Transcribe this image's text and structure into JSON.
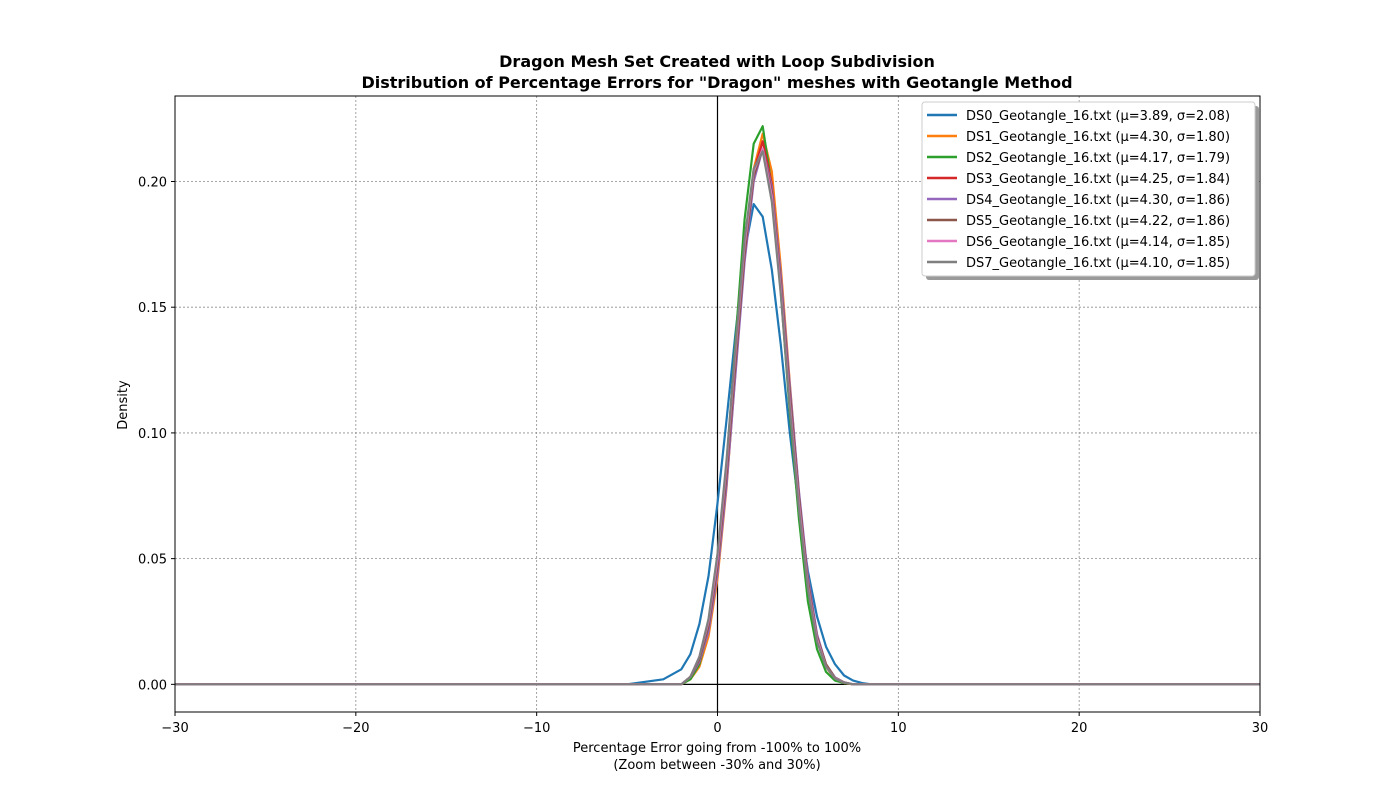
{
  "chart_data": {
    "type": "line",
    "title": "Dragon Mesh Set Created with Loop Subdivision",
    "subtitle": "Distribution of Percentage Errors for \"Dragon\" meshes with Geotangle Method",
    "xlabel": "Percentage Error going from -100% to 100%",
    "xlabel2": "(Zoom between -30% and 30%)",
    "ylabel": "Density",
    "xlim": [
      -30,
      30
    ],
    "ylim": [
      -0.011,
      0.234
    ],
    "xticks": [
      -30,
      -20,
      -10,
      0,
      10,
      20,
      30
    ],
    "xtick_labels": [
      "−30",
      "−20",
      "−10",
      "0",
      "10",
      "20",
      "30"
    ],
    "yticks": [
      0.0,
      0.05,
      0.1,
      0.15,
      0.2
    ],
    "ytick_labels": [
      "0.00",
      "0.05",
      "0.10",
      "0.15",
      "0.20"
    ],
    "grid": true,
    "reference_lines": {
      "x": 0,
      "y": 0
    },
    "legend_position": "upper right",
    "x": [
      -30,
      -5,
      -3,
      -2,
      -1.5,
      -1,
      -0.5,
      0,
      0.5,
      1,
      1.5,
      2,
      2.5,
      3,
      3.5,
      4,
      4.5,
      5,
      5.5,
      6,
      6.5,
      7,
      7.5,
      8,
      8.5,
      9,
      9.5,
      10,
      10.5,
      11,
      12,
      15,
      30
    ],
    "series": [
      {
        "name": "DS0_Geotangle_16.txt (μ=3.89, σ=2.08)",
        "color": "#1f77b4",
        "values": [
          0,
          0,
          0.002,
          0.006,
          0.012,
          0.024,
          0.043,
          0.072,
          0.105,
          0.14,
          0.172,
          0.191,
          0.186,
          0.165,
          0.135,
          0.1,
          0.07,
          0.045,
          0.027,
          0.015,
          0.008,
          0.0035,
          0.0015,
          0.0005,
          0,
          0,
          0,
          0,
          0,
          0,
          0,
          0,
          0
        ]
      },
      {
        "name": "DS1_Geotangle_16.txt (μ=4.30, σ=1.80)",
        "color": "#ff7f0e",
        "values": [
          0,
          0,
          0,
          0,
          0.002,
          0.007,
          0.019,
          0.042,
          0.078,
          0.125,
          0.171,
          0.205,
          0.219,
          0.204,
          0.166,
          0.12,
          0.076,
          0.04,
          0.018,
          0.007,
          0.002,
          0.0005,
          0,
          0,
          0,
          0,
          0,
          0,
          0,
          0,
          0,
          0,
          0
        ]
      },
      {
        "name": "DS2_Geotangle_16.txt (μ=4.17, σ=1.79)",
        "color": "#2ca02c",
        "values": [
          0,
          0,
          0,
          0,
          0.002,
          0.008,
          0.022,
          0.048,
          0.087,
          0.137,
          0.185,
          0.215,
          0.222,
          0.198,
          0.156,
          0.108,
          0.066,
          0.033,
          0.014,
          0.005,
          0.0015,
          0.0005,
          0,
          0,
          0,
          0,
          0,
          0,
          0,
          0,
          0,
          0,
          0
        ]
      },
      {
        "name": "DS3_Geotangle_16.txt (μ=4.25, σ=1.84)",
        "color": "#d62728",
        "values": [
          0,
          0,
          0,
          0,
          0.003,
          0.009,
          0.022,
          0.046,
          0.082,
          0.128,
          0.172,
          0.204,
          0.216,
          0.199,
          0.162,
          0.117,
          0.075,
          0.041,
          0.019,
          0.008,
          0.0025,
          0.0007,
          0,
          0,
          0,
          0,
          0,
          0,
          0,
          0,
          0,
          0,
          0
        ]
      },
      {
        "name": "DS4_Geotangle_16.txt (μ=4.30, σ=1.86)",
        "color": "#9467bd",
        "values": [
          0,
          0,
          0,
          0,
          0.003,
          0.009,
          0.021,
          0.044,
          0.079,
          0.124,
          0.168,
          0.2,
          0.213,
          0.198,
          0.163,
          0.119,
          0.077,
          0.043,
          0.02,
          0.008,
          0.0028,
          0.0008,
          0,
          0,
          0,
          0,
          0,
          0,
          0,
          0,
          0,
          0,
          0
        ]
      },
      {
        "name": "DS5_Geotangle_16.txt (μ=4.22, σ=1.86)",
        "color": "#8c564b",
        "values": [
          0,
          0,
          0,
          0,
          0.003,
          0.01,
          0.023,
          0.047,
          0.083,
          0.128,
          0.171,
          0.202,
          0.213,
          0.196,
          0.16,
          0.116,
          0.075,
          0.041,
          0.019,
          0.008,
          0.0026,
          0.0008,
          0,
          0,
          0,
          0,
          0,
          0,
          0,
          0,
          0,
          0,
          0
        ]
      },
      {
        "name": "DS6_Geotangle_16.txt (μ=4.14, σ=1.85)",
        "color": "#e377c2",
        "values": [
          0,
          0,
          0,
          0,
          0.003,
          0.011,
          0.025,
          0.05,
          0.087,
          0.133,
          0.175,
          0.204,
          0.213,
          0.194,
          0.157,
          0.112,
          0.072,
          0.039,
          0.018,
          0.007,
          0.0024,
          0.0007,
          0,
          0,
          0,
          0,
          0,
          0,
          0,
          0,
          0,
          0,
          0
        ]
      },
      {
        "name": "DS7_Geotangle_16.txt (μ=4.10, σ=1.85)",
        "color": "#7f7f7f",
        "values": [
          0,
          0,
          0,
          0,
          0.003,
          0.011,
          0.026,
          0.052,
          0.089,
          0.135,
          0.177,
          0.205,
          0.212,
          0.192,
          0.155,
          0.11,
          0.07,
          0.038,
          0.017,
          0.007,
          0.0023,
          0.0007,
          0,
          0,
          0,
          0,
          0,
          0,
          0,
          0,
          0,
          0,
          0
        ]
      }
    ]
  }
}
